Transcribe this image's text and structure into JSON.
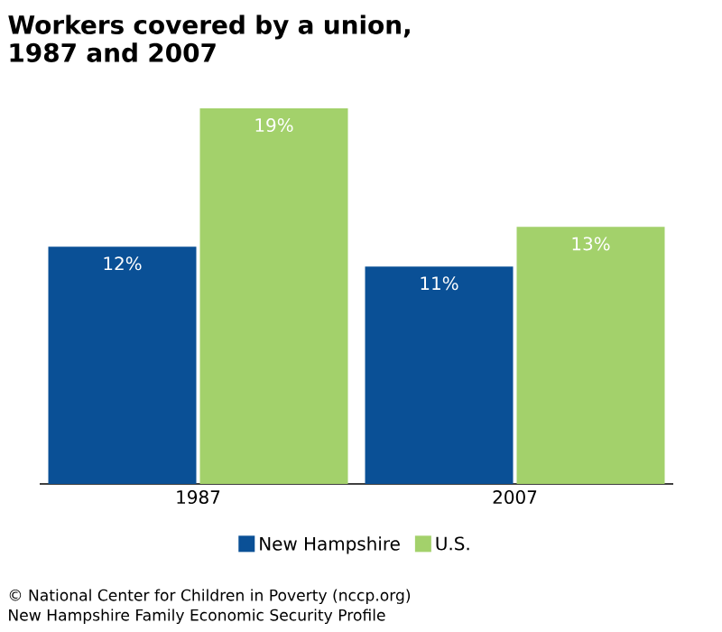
{
  "chart_data": {
    "type": "bar",
    "title": "Workers covered by a union,\n1987 and 2007",
    "categories": [
      "1987",
      "2007"
    ],
    "series": [
      {
        "name": "New Hampshire",
        "color": "#0a5096",
        "values": [
          12,
          11
        ],
        "value_labels": [
          "12%",
          "11%"
        ]
      },
      {
        "name": "U.S.",
        "color": "#a3d16b",
        "values": [
          19,
          13
        ],
        "value_labels": [
          "19%",
          "13%"
        ]
      }
    ],
    "legend": "bottom",
    "annotations": [
      "© National Center for Children in Poverty (nccp.org)",
      "New Hampshire Family Economic Security Profile"
    ]
  }
}
